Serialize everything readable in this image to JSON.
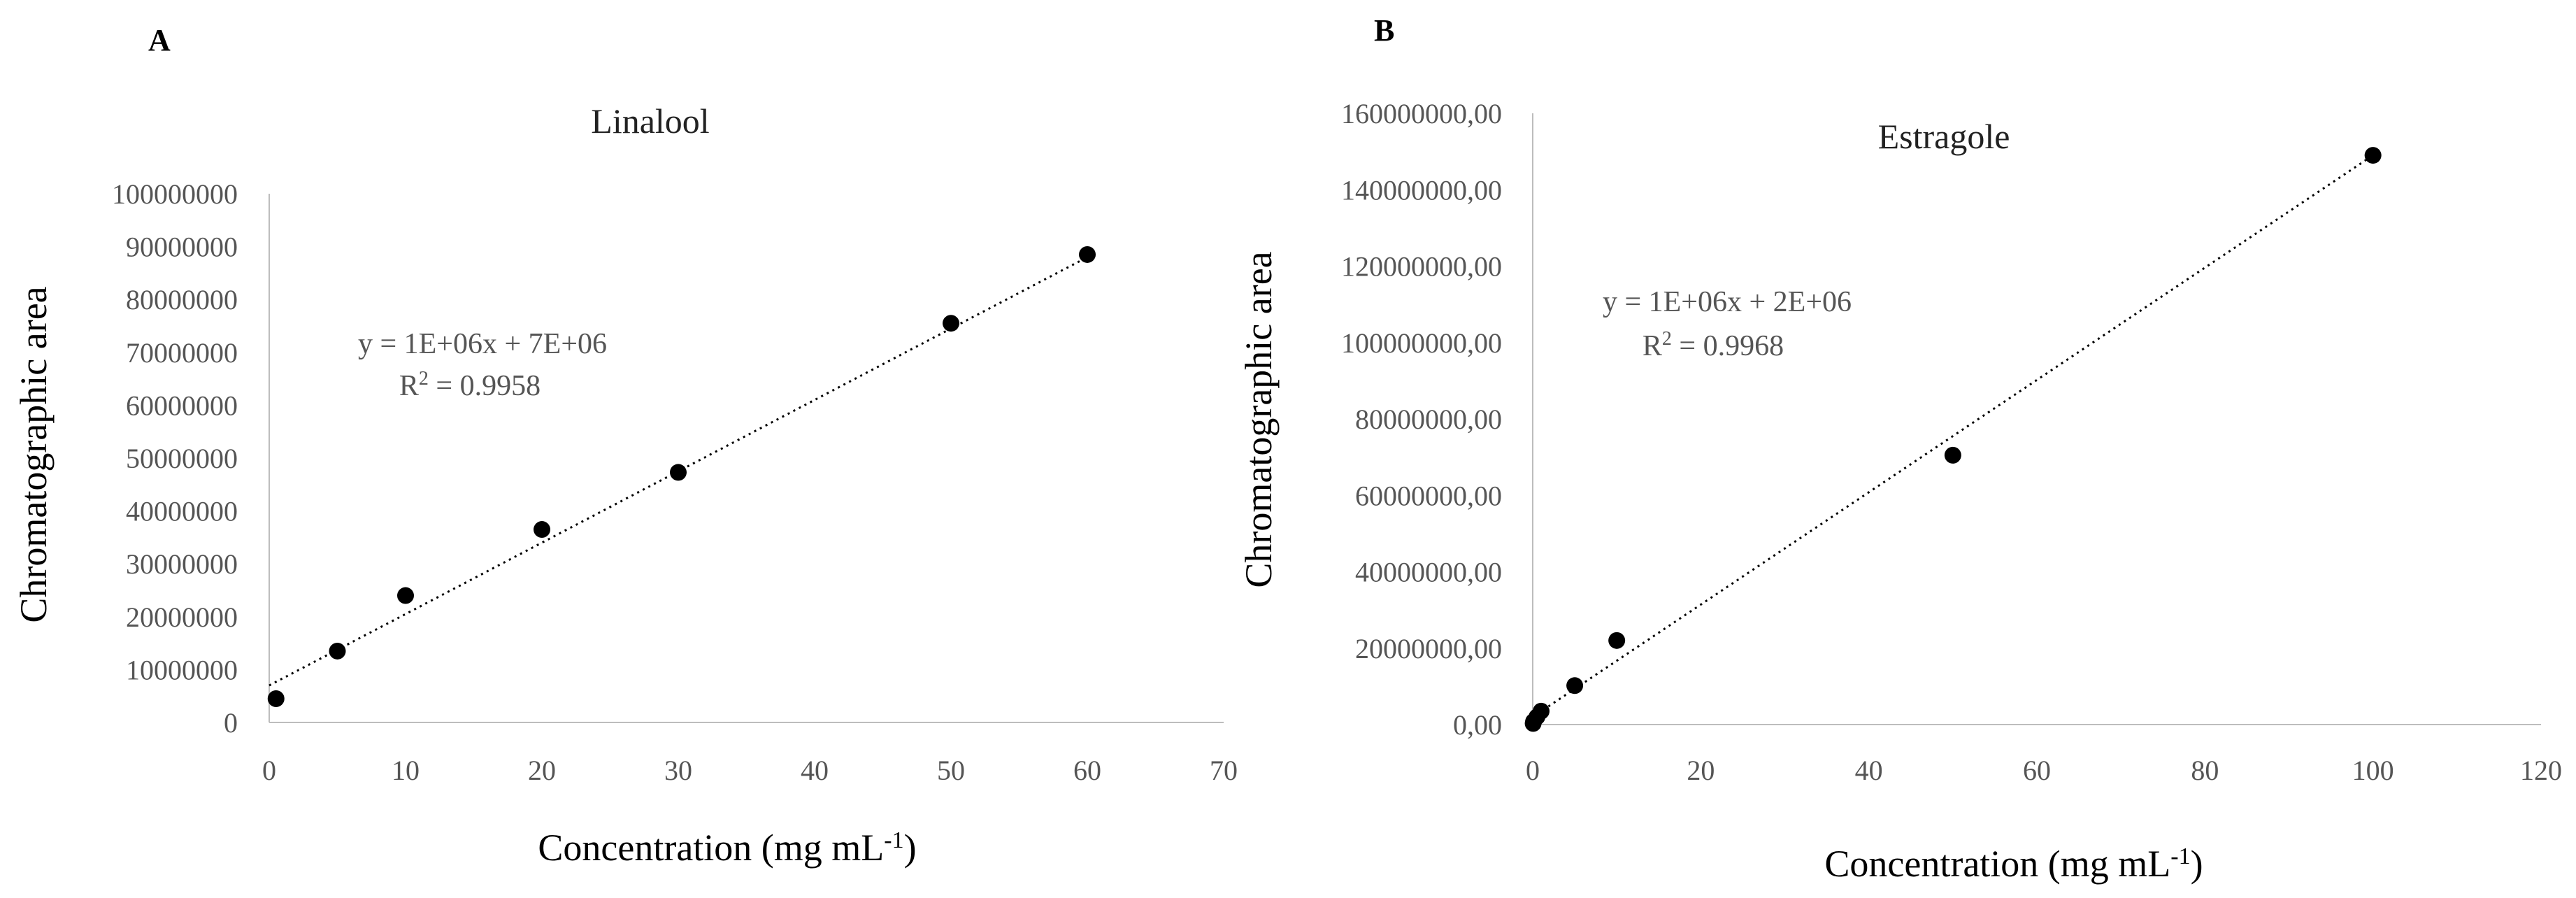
{
  "chart_data": [
    {
      "panel": "A",
      "type": "scatter",
      "title": "Linalool",
      "xlabel": "Concentration (mg mL",
      "xlabel_sup": "-1",
      "xlabel_end": ")",
      "ylabel": "Chromatographic area",
      "xlim": [
        0,
        70
      ],
      "ylim": [
        0,
        100000000
      ],
      "x_ticks": [
        0,
        10,
        20,
        30,
        40,
        50,
        60,
        70
      ],
      "y_ticks": [
        0,
        10000000,
        20000000,
        30000000,
        40000000,
        50000000,
        60000000,
        70000000,
        80000000,
        90000000,
        100000000
      ],
      "y_tick_labels": [
        "0",
        "10000000",
        "20000000",
        "30000000",
        "40000000",
        "50000000",
        "60000000",
        "70000000",
        "80000000",
        "90000000",
        "100000000"
      ],
      "series": [
        {
          "x": [
            0.5,
            5,
            10,
            20,
            30,
            50,
            60
          ],
          "y": [
            4500000,
            13500000,
            24000000,
            36500000,
            47300000,
            75500000,
            88500000
          ]
        }
      ],
      "trendline": {
        "slope": 1350000,
        "intercept": 7000000,
        "x_range": [
          0,
          60
        ]
      },
      "equation": "y = 1E+06x + 7E+06",
      "r2_prefix": "R",
      "r2_sup": "2",
      "r2_value": " = 0.9958",
      "grid": false
    },
    {
      "panel": "B",
      "type": "scatter",
      "title": "Estragole",
      "xlabel": "Concentration (mg mL",
      "xlabel_sup": "-1",
      "xlabel_end": ")",
      "ylabel": "Chromatographic area",
      "xlim": [
        0,
        120
      ],
      "ylim": [
        0,
        160000000
      ],
      "x_ticks": [
        0,
        20,
        40,
        60,
        80,
        100,
        120
      ],
      "y_ticks": [
        0,
        20000000,
        40000000,
        60000000,
        80000000,
        100000000,
        120000000,
        140000000,
        160000000
      ],
      "y_tick_labels": [
        "0,00",
        "20000000,00",
        "40000000,00",
        "60000000,00",
        "80000000,00",
        "100000000,00",
        "120000000,00",
        "140000000,00",
        "160000000,00"
      ],
      "series": [
        {
          "x": [
            0.05,
            0.1,
            0.5,
            1,
            5,
            10,
            50,
            100
          ],
          "y": [
            300000,
            800000,
            2000000,
            3500000,
            10200000,
            22000000,
            70500000,
            149000000
          ]
        }
      ],
      "trendline": {
        "slope": 1470000,
        "intercept": 2000000,
        "x_range": [
          0,
          100
        ]
      },
      "equation": "y = 1E+06x + 2E+06",
      "r2_prefix": "R",
      "r2_sup": "2",
      "r2_value": " = 0.9968",
      "grid": false
    }
  ]
}
